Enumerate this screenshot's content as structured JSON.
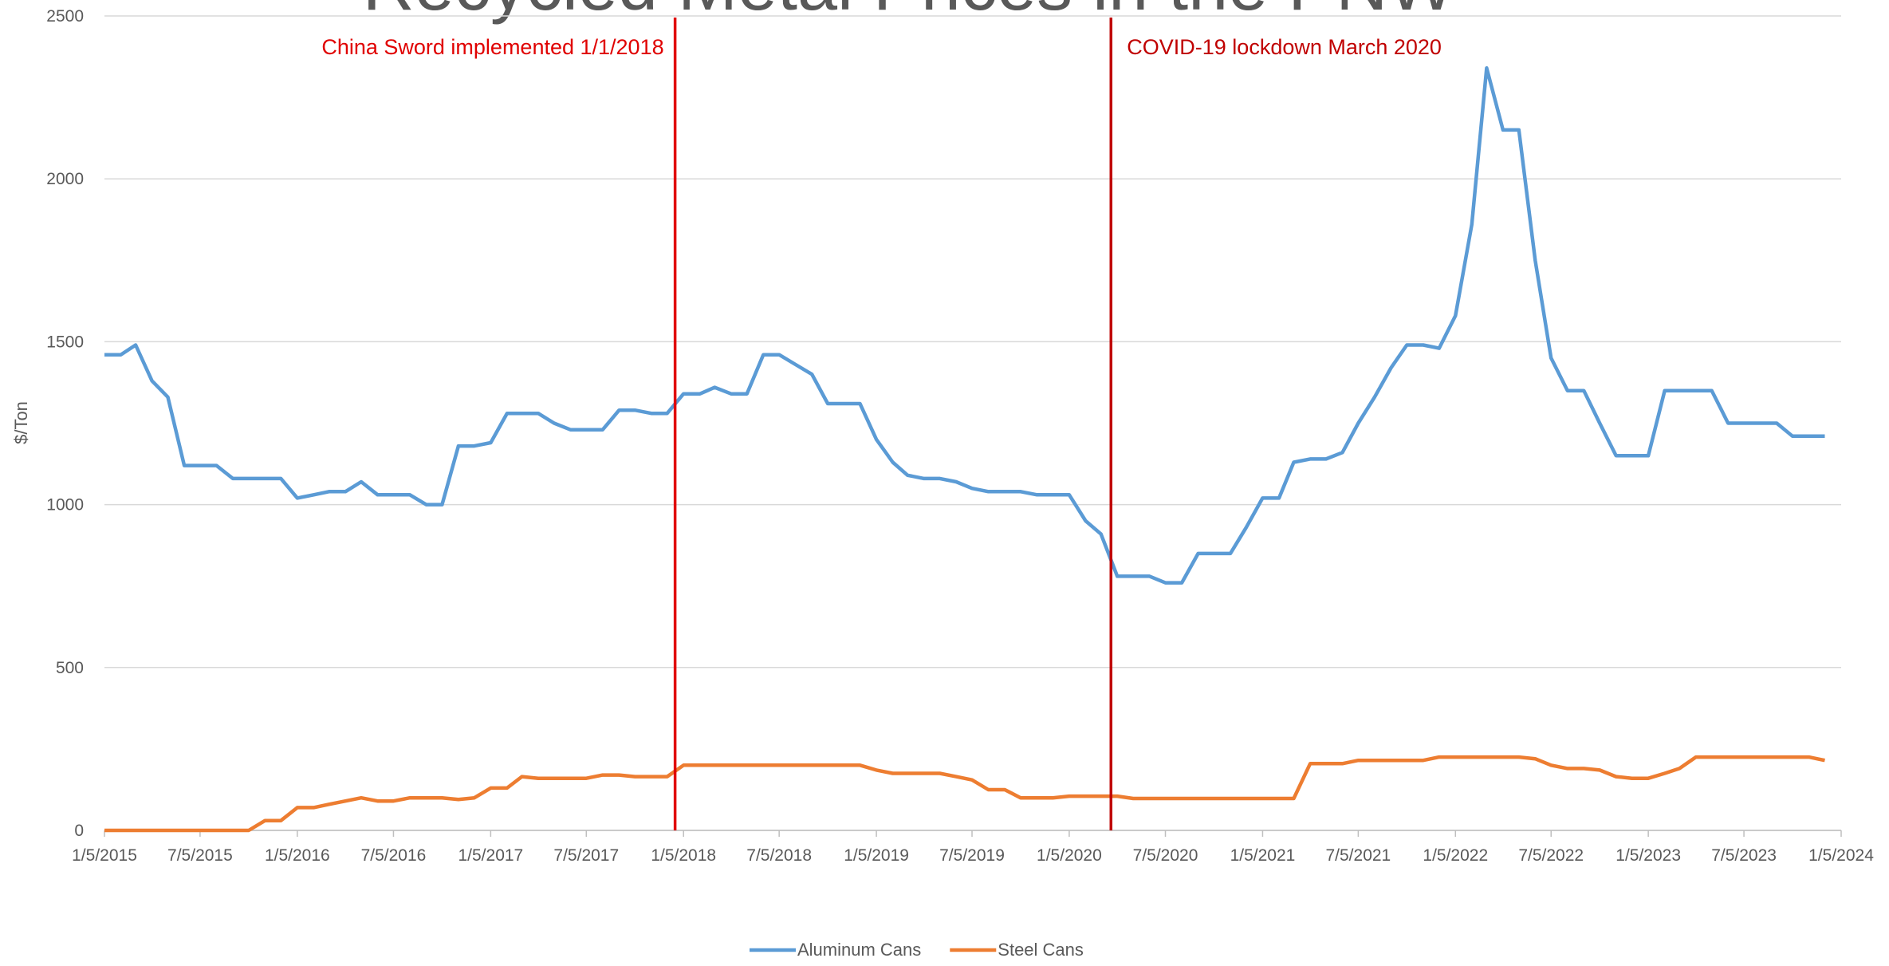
{
  "chart_data": {
    "type": "line",
    "title": "Recycled Metal Prices in the PNW",
    "ylabel": "$/Ton",
    "x": [
      "1/5/2015",
      "2/5/2015",
      "3/5/2015",
      "4/5/2015",
      "5/5/2015",
      "6/5/2015",
      "7/5/2015",
      "8/5/2015",
      "9/5/2015",
      "10/5/2015",
      "11/5/2015",
      "12/5/2015",
      "1/5/2016",
      "2/5/2016",
      "3/5/2016",
      "4/5/2016",
      "5/5/2016",
      "6/5/2016",
      "7/5/2016",
      "8/5/2016",
      "9/5/2016",
      "10/5/2016",
      "11/5/2016",
      "12/5/2016",
      "1/5/2017",
      "2/5/2017",
      "3/5/2017",
      "4/5/2017",
      "5/5/2017",
      "6/5/2017",
      "7/5/2017",
      "8/5/2017",
      "9/5/2017",
      "10/5/2017",
      "11/5/2017",
      "12/5/2017",
      "1/5/2018",
      "2/5/2018",
      "3/5/2018",
      "4/5/2018",
      "5/5/2018",
      "6/5/2018",
      "7/5/2018",
      "8/5/2018",
      "9/5/2018",
      "10/5/2018",
      "11/5/2018",
      "12/5/2018",
      "1/5/2019",
      "2/5/2019",
      "3/5/2019",
      "4/5/2019",
      "5/5/2019",
      "6/5/2019",
      "7/5/2019",
      "8/5/2019",
      "9/5/2019",
      "10/5/2019",
      "11/5/2019",
      "12/5/2019",
      "1/5/2020",
      "2/5/2020",
      "3/5/2020",
      "4/5/2020",
      "5/5/2020",
      "6/5/2020",
      "7/5/2020",
      "8/5/2020",
      "9/5/2020",
      "10/5/2020",
      "11/5/2020",
      "12/5/2020",
      "1/5/2021",
      "2/5/2021",
      "3/5/2021",
      "4/5/2021",
      "5/5/2021",
      "6/5/2021",
      "7/5/2021",
      "8/5/2021",
      "9/5/2021",
      "10/5/2021",
      "11/5/2021",
      "12/5/2021",
      "1/5/2022",
      "2/5/2022",
      "3/5/2022",
      "4/5/2022",
      "5/5/2022",
      "6/5/2022",
      "7/5/2022",
      "8/5/2022",
      "9/5/2022",
      "10/5/2022",
      "11/5/2022",
      "12/5/2022",
      "1/5/2023",
      "2/5/2023",
      "3/5/2023",
      "4/5/2023",
      "5/5/2023",
      "6/5/2023",
      "7/5/2023",
      "8/5/2023",
      "9/5/2023",
      "10/5/2023",
      "11/5/2023",
      "12/5/2023"
    ],
    "series": [
      {
        "name": "Aluminum Cans",
        "color": "#5b9bd5",
        "values": [
          1460,
          1460,
          1490,
          1380,
          1330,
          1120,
          1120,
          1120,
          1080,
          1080,
          1080,
          1080,
          1020,
          1030,
          1040,
          1040,
          1070,
          1030,
          1030,
          1030,
          1000,
          1000,
          1180,
          1180,
          1190,
          1280,
          1280,
          1280,
          1250,
          1230,
          1230,
          1230,
          1290,
          1290,
          1280,
          1280,
          1340,
          1340,
          1360,
          1340,
          1340,
          1460,
          1460,
          1430,
          1400,
          1310,
          1310,
          1310,
          1200,
          1130,
          1090,
          1080,
          1080,
          1070,
          1050,
          1040,
          1040,
          1040,
          1030,
          1030,
          1030,
          950,
          910,
          780,
          780,
          780,
          760,
          760,
          850,
          850,
          850,
          930,
          1020,
          1020,
          1130,
          1140,
          1140,
          1160,
          1250,
          1330,
          1420,
          1490,
          1490,
          1480,
          1580,
          1860,
          2340,
          2150,
          2150,
          1750,
          1450,
          1350,
          1350,
          1250,
          1150,
          1150,
          1150,
          1350,
          1350,
          1350,
          1350,
          1250,
          1250,
          1250,
          1250,
          1210,
          1210,
          1210
        ]
      },
      {
        "name": "Steel Cans",
        "color": "#ed7d31",
        "values": [
          0,
          0,
          0,
          0,
          0,
          0,
          0,
          0,
          0,
          0,
          30,
          30,
          70,
          70,
          80,
          90,
          100,
          90,
          90,
          100,
          100,
          100,
          95,
          100,
          130,
          130,
          165,
          160,
          160,
          160,
          160,
          170,
          170,
          165,
          165,
          165,
          200,
          200,
          200,
          200,
          200,
          200,
          200,
          200,
          200,
          200,
          200,
          200,
          185,
          175,
          175,
          175,
          175,
          165,
          155,
          125,
          125,
          100,
          100,
          100,
          105,
          105,
          105,
          105,
          98,
          98,
          98,
          98,
          98,
          98,
          98,
          98,
          98,
          98,
          98,
          205,
          205,
          205,
          215,
          215,
          215,
          215,
          215,
          225,
          225,
          225,
          225,
          225,
          225,
          220,
          200,
          190,
          190,
          185,
          165,
          160,
          160,
          175,
          190,
          225,
          225,
          225,
          225,
          225,
          225,
          225,
          225,
          215
        ]
      }
    ],
    "xlim": [
      "1/5/2015",
      "1/5/2024"
    ],
    "xticks": [
      "1/5/2015",
      "7/5/2015",
      "1/5/2016",
      "7/5/2016",
      "1/5/2017",
      "7/5/2017",
      "1/5/2018",
      "7/5/2018",
      "1/5/2019",
      "7/5/2019",
      "1/5/2020",
      "7/5/2020",
      "1/5/2021",
      "7/5/2021",
      "1/5/2022",
      "7/5/2022",
      "1/5/2023",
      "7/5/2023",
      "1/5/2024"
    ],
    "ylim": [
      0,
      2500
    ],
    "yticks": [
      0,
      500,
      1000,
      1500,
      2000,
      2500
    ],
    "grid": true,
    "legend": "bottom",
    "annotations": [
      {
        "text": "China Sword implemented 1/1/2018",
        "x": "12/20/2017",
        "color": "#e00000"
      },
      {
        "text": "COVID-19 lockdown March 2020",
        "x": "3/24/2020",
        "color": "#c00000"
      }
    ]
  }
}
